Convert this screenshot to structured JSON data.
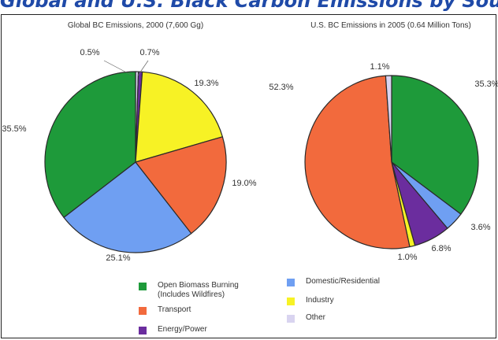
{
  "header_banner": "Global and U.S. Black Carbon Emissions by Source Category",
  "colors": {
    "open_biomass": "#1e9a3a",
    "domestic": "#6f9ff2",
    "transport": "#f26a3d",
    "industry": "#f7f225",
    "energy": "#6b2d9e",
    "other": "#d9d4f0"
  },
  "legend": [
    {
      "label": "Open Biomass Burning\n(Includes Wildfires)",
      "color": "#1e9a3a"
    },
    {
      "label": "Domestic/Residential",
      "color": "#6f9ff2"
    },
    {
      "label": "Transport",
      "color": "#f26a3d"
    },
    {
      "label": "Industry",
      "color": "#f7f225"
    },
    {
      "label": "Energy/Power",
      "color": "#6b2d9e"
    },
    {
      "label": "Other",
      "color": "#d9d4f0"
    }
  ],
  "chart_data": [
    {
      "type": "pie",
      "title": "Global BC Emissions, 2000 (7,600 Gg)",
      "slices": [
        {
          "category": "Other",
          "value": 0.5,
          "label": "0.5%",
          "color": "#d9d4f0"
        },
        {
          "category": "Energy/Power",
          "value": 0.7,
          "label": "0.7%",
          "color": "#6b2d9e"
        },
        {
          "category": "Industry",
          "value": 19.3,
          "label": "19.3%",
          "color": "#f7f225"
        },
        {
          "category": "Transport",
          "value": 19.0,
          "label": "19.0%",
          "color": "#f26a3d"
        },
        {
          "category": "Domestic/Residential",
          "value": 25.1,
          "label": "25.1%",
          "color": "#6f9ff2"
        },
        {
          "category": "Open Biomass Burning (Includes Wildfires)",
          "value": 35.5,
          "label": "35.5%",
          "color": "#1e9a3a"
        }
      ]
    },
    {
      "type": "pie",
      "title": "U.S. BC Emissions in 2005 (0.64 Million Tons)",
      "slices": [
        {
          "category": "Open Biomass Burning (Includes Wildfires)",
          "value": 35.3,
          "label": "35.3%",
          "color": "#1e9a3a"
        },
        {
          "category": "Domestic/Residential",
          "value": 3.6,
          "label": "3.6%",
          "color": "#6f9ff2"
        },
        {
          "category": "Energy/Power",
          "value": 6.8,
          "label": "6.8%",
          "color": "#6b2d9e"
        },
        {
          "category": "Industry",
          "value": 1.0,
          "label": "1.0%",
          "color": "#f7f225"
        },
        {
          "category": "Transport",
          "value": 52.3,
          "label": "52.3%",
          "color": "#f26a3d"
        },
        {
          "category": "Other",
          "value": 1.1,
          "label": "1.1%",
          "color": "#d9d4f0"
        }
      ]
    }
  ]
}
